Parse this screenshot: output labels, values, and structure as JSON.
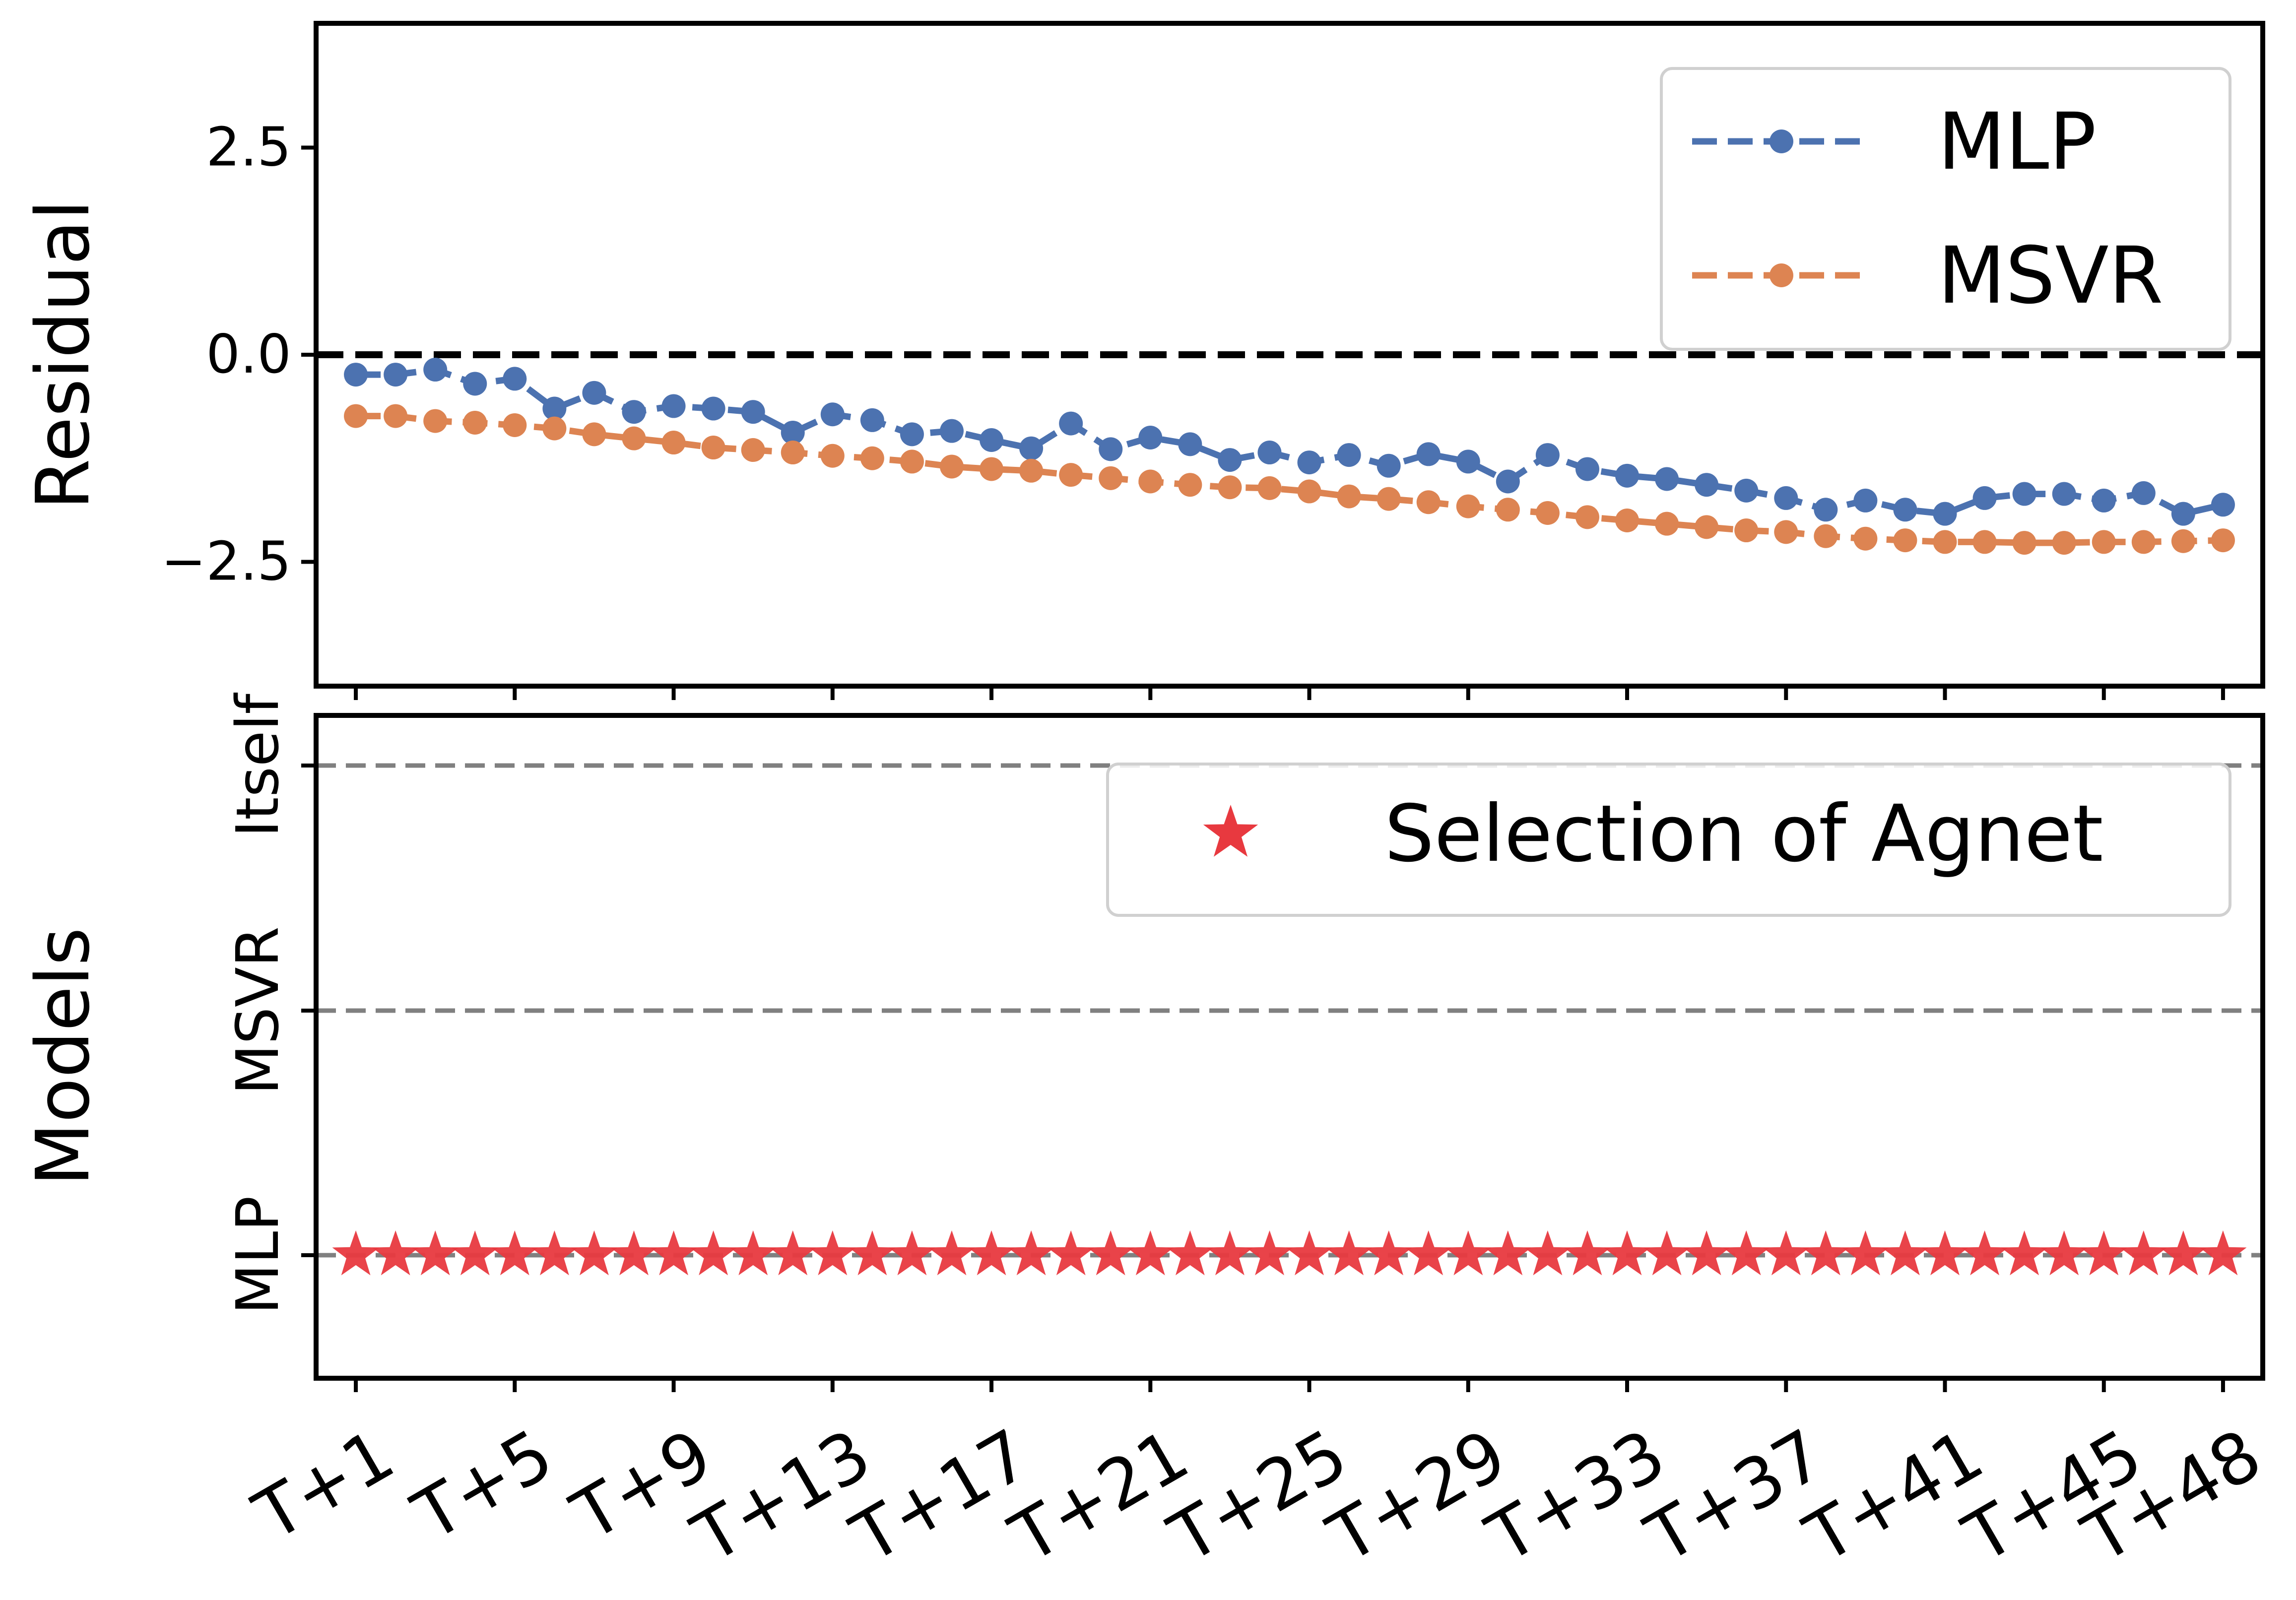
{
  "chart_data": [
    {
      "type": "line",
      "ylabel": "Residual",
      "ylim": [
        -4.0,
        4.0
      ],
      "yticks": [
        -2.5,
        0.0,
        2.5
      ],
      "ytick_labels": [
        "−2.5",
        "0.0",
        "2.5"
      ],
      "reference_line": 0.0,
      "legend_position": "top-right",
      "x": [
        1,
        2,
        3,
        4,
        5,
        6,
        7,
        8,
        9,
        10,
        11,
        12,
        13,
        14,
        15,
        16,
        17,
        18,
        19,
        20,
        21,
        22,
        23,
        24,
        25,
        26,
        27,
        28,
        29,
        30,
        31,
        32,
        33,
        34,
        35,
        36,
        37,
        38,
        39,
        40,
        41,
        42,
        43,
        44,
        45,
        46,
        47,
        48
      ],
      "series": [
        {
          "name": "MLP",
          "color": "#4c72b0",
          "values": [
            -0.24,
            -0.24,
            -0.18,
            -0.35,
            -0.29,
            -0.65,
            -0.46,
            -0.69,
            -0.62,
            -0.65,
            -0.69,
            -0.94,
            -0.72,
            -0.79,
            -0.96,
            -0.92,
            -1.03,
            -1.13,
            -0.83,
            -1.14,
            -1.0,
            -1.08,
            -1.27,
            -1.18,
            -1.3,
            -1.21,
            -1.34,
            -1.2,
            -1.29,
            -1.53,
            -1.21,
            -1.38,
            -1.46,
            -1.5,
            -1.57,
            -1.64,
            -1.73,
            -1.87,
            -1.76,
            -1.87,
            -1.92,
            -1.73,
            -1.68,
            -1.68,
            -1.76,
            -1.67,
            -1.92,
            -1.81
          ]
        },
        {
          "name": "MSVR",
          "color": "#dd8452",
          "values": [
            -0.74,
            -0.74,
            -0.8,
            -0.82,
            -0.85,
            -0.89,
            -0.96,
            -1.01,
            -1.06,
            -1.12,
            -1.15,
            -1.18,
            -1.22,
            -1.25,
            -1.29,
            -1.35,
            -1.38,
            -1.4,
            -1.45,
            -1.49,
            -1.53,
            -1.57,
            -1.6,
            -1.61,
            -1.65,
            -1.71,
            -1.74,
            -1.78,
            -1.83,
            -1.87,
            -1.91,
            -1.96,
            -2.0,
            -2.04,
            -2.08,
            -2.12,
            -2.14,
            -2.19,
            -2.22,
            -2.24,
            -2.26,
            -2.26,
            -2.27,
            -2.27,
            -2.26,
            -2.26,
            -2.25,
            -2.24
          ]
        }
      ]
    },
    {
      "type": "scatter",
      "ylabel": "Models",
      "categories": [
        "MLP",
        "MSVR",
        "Itself"
      ],
      "legend_position": "top-right",
      "xtick_labels": [
        "T+1",
        "T+5",
        "T+9",
        "T+13",
        "T+17",
        "T+21",
        "T+25",
        "T+29",
        "T+33",
        "T+37",
        "T+41",
        "T+45",
        "T+48"
      ],
      "xtick_positions": [
        1,
        5,
        9,
        13,
        17,
        21,
        25,
        29,
        33,
        37,
        41,
        45,
        48
      ],
      "x": [
        1,
        2,
        3,
        4,
        5,
        6,
        7,
        8,
        9,
        10,
        11,
        12,
        13,
        14,
        15,
        16,
        17,
        18,
        19,
        20,
        21,
        22,
        23,
        24,
        25,
        26,
        27,
        28,
        29,
        30,
        31,
        32,
        33,
        34,
        35,
        36,
        37,
        38,
        39,
        40,
        41,
        42,
        43,
        44,
        45,
        46,
        47,
        48
      ],
      "series": [
        {
          "name": "Selection of Agnet",
          "color": "#e8393f",
          "marker": "star",
          "values": [
            "MLP",
            "MLP",
            "MLP",
            "MLP",
            "MLP",
            "MLP",
            "MLP",
            "MLP",
            "MLP",
            "MLP",
            "MLP",
            "MLP",
            "MLP",
            "MLP",
            "MLP",
            "MLP",
            "MLP",
            "MLP",
            "MLP",
            "MLP",
            "MLP",
            "MLP",
            "MLP",
            "MLP",
            "MLP",
            "MLP",
            "MLP",
            "MLP",
            "MLP",
            "MLP",
            "MLP",
            "MLP",
            "MLP",
            "MLP",
            "MLP",
            "MLP",
            "MLP",
            "MLP",
            "MLP",
            "MLP",
            "MLP",
            "MLP",
            "MLP",
            "MLP",
            "MLP",
            "MLP",
            "MLP",
            "MLP"
          ]
        }
      ]
    }
  ]
}
